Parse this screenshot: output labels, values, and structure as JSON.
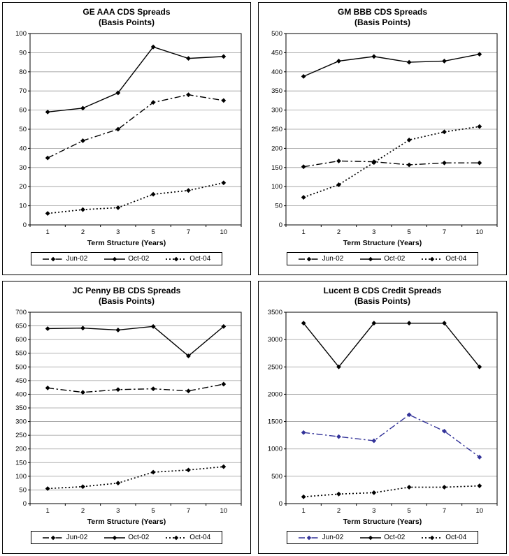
{
  "style": {
    "grid_color": "#9a9a9a",
    "axis_color": "#000000",
    "panel_border_color": "#000000"
  },
  "chart_data": [
    {
      "type": "line",
      "title": "GE AAA CDS Spreads",
      "subtitle": "(Basis Points)",
      "xlabel": "Term Structure (Years)",
      "categories": [
        "1",
        "2",
        "3",
        "5",
        "7",
        "10"
      ],
      "ylim": [
        0,
        100
      ],
      "ytick_step": 10,
      "grid": true,
      "legend_position": "bottom",
      "series": [
        {
          "name": "Jun-02",
          "line_style": "dashdot",
          "color": "#000000",
          "values": [
            35,
            44,
            50,
            64,
            68,
            65
          ]
        },
        {
          "name": "Oct-02",
          "line_style": "solid",
          "color": "#000000",
          "values": [
            59,
            61,
            69,
            93,
            87,
            88
          ]
        },
        {
          "name": "Oct-04",
          "line_style": "dotted",
          "color": "#000000",
          "values": [
            6,
            8,
            9,
            16,
            18,
            22
          ]
        }
      ]
    },
    {
      "type": "line",
      "title": "GM BBB CDS Spreads",
      "subtitle": "(Basis Points)",
      "xlabel": "Term Structure (Years)",
      "categories": [
        "1",
        "2",
        "3",
        "5",
        "7",
        "10"
      ],
      "ylim": [
        0,
        500
      ],
      "ytick_step": 50,
      "grid": true,
      "legend_position": "bottom",
      "series": [
        {
          "name": "Jun-02",
          "line_style": "dashdot",
          "color": "#000000",
          "values": [
            152,
            167,
            165,
            157,
            162,
            162
          ]
        },
        {
          "name": "Oct-02",
          "line_style": "solid",
          "color": "#000000",
          "values": [
            388,
            428,
            440,
            425,
            428,
            446
          ]
        },
        {
          "name": "Oct-04",
          "line_style": "dotted",
          "color": "#000000",
          "values": [
            72,
            105,
            163,
            222,
            243,
            257
          ]
        }
      ]
    },
    {
      "type": "line",
      "title": "JC Penny BB CDS Spreads",
      "subtitle": "(Basis Points)",
      "xlabel": "Term Structure (Years)",
      "categories": [
        "1",
        "2",
        "3",
        "5",
        "7",
        "10"
      ],
      "ylim": [
        0,
        700
      ],
      "ytick_step": 50,
      "grid": true,
      "legend_position": "bottom",
      "series": [
        {
          "name": "Jun-02",
          "line_style": "dashdot",
          "color": "#000000",
          "values": [
            423,
            407,
            417,
            420,
            412,
            437
          ]
        },
        {
          "name": "Oct-02",
          "line_style": "solid",
          "color": "#000000",
          "values": [
            640,
            642,
            635,
            648,
            540,
            648
          ]
        },
        {
          "name": "Oct-04",
          "line_style": "dotted",
          "color": "#000000",
          "values": [
            55,
            62,
            75,
            115,
            123,
            135
          ]
        }
      ]
    },
    {
      "type": "line",
      "title": "Lucent B CDS Credit Spreads",
      "subtitle": "(Basis Points)",
      "xlabel": "Term Structure (Years)",
      "categories": [
        "1",
        "2",
        "3",
        "5",
        "7",
        "10"
      ],
      "ylim": [
        0,
        3500
      ],
      "ytick_step": 500,
      "grid": true,
      "legend_position": "bottom",
      "series": [
        {
          "name": "Jun-02",
          "line_style": "dashdot",
          "color": "#333399",
          "values": [
            1300,
            1225,
            1150,
            1625,
            1325,
            850
          ]
        },
        {
          "name": "Oct-02",
          "line_style": "solid",
          "color": "#000000",
          "values": [
            3300,
            2500,
            3300,
            3300,
            3300,
            2500
          ]
        },
        {
          "name": "Oct-04",
          "line_style": "dotted",
          "color": "#000000",
          "values": [
            125,
            175,
            200,
            300,
            300,
            325
          ]
        }
      ]
    }
  ]
}
